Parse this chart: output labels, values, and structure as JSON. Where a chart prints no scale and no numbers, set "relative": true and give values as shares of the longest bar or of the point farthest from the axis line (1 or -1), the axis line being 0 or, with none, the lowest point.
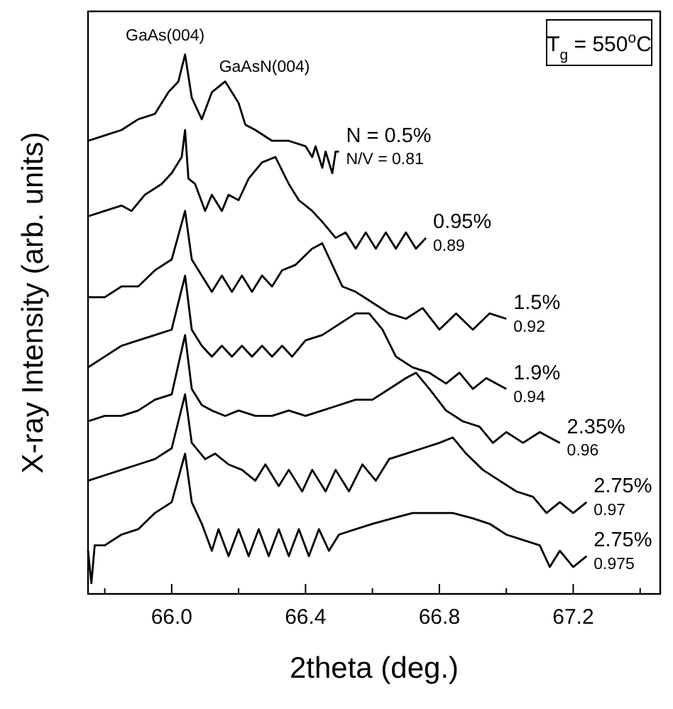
{
  "chart_data": {
    "type": "line",
    "relative": true,
    "xlabel": "2theta (deg.)",
    "ylabel": "X-ray Intensity  (arb. units)",
    "xlim": [
      65.75,
      67.46
    ],
    "xticks": [
      {
        "value": 65.8,
        "label": null
      },
      {
        "value": 66.0,
        "label": "66.0"
      },
      {
        "value": 66.2,
        "label": null
      },
      {
        "value": 66.4,
        "label": "66.4"
      },
      {
        "value": 66.6,
        "label": null
      },
      {
        "value": 66.8,
        "label": "66.8"
      },
      {
        "value": 67.0,
        "label": null
      },
      {
        "value": 67.2,
        "label": "67.2"
      },
      {
        "value": 67.4,
        "label": null
      }
    ],
    "series": [
      {
        "color": "#000000",
        "x": [
          65.75,
          65.8,
          65.85,
          65.9,
          65.95,
          65.99,
          66.02,
          66.04,
          66.06,
          66.09,
          66.12,
          66.16,
          66.2,
          66.22,
          66.25,
          66.3,
          66.35,
          66.4,
          66.42,
          66.43,
          66.45,
          66.46,
          66.48,
          66.49,
          66.5
        ],
        "values": [
          0.84,
          0.85,
          0.86,
          0.88,
          0.89,
          0.93,
          0.95,
          1,
          0.92,
          0.88,
          0.93,
          0.95,
          0.91,
          0.87,
          0.86,
          0.84,
          0.84,
          0.83,
          0.81,
          0.83,
          0.79,
          0.82,
          0.78,
          0.82,
          0.82
        ]
      },
      {
        "color": "#000000",
        "x": [
          65.75,
          65.8,
          65.85,
          65.88,
          65.92,
          65.97,
          66.0,
          66.03,
          66.04,
          66.05,
          66.07,
          66.1,
          66.12,
          66.15,
          66.17,
          66.2,
          66.23,
          66.27,
          66.31,
          66.35,
          66.38,
          66.42,
          66.45,
          66.49,
          66.52,
          66.55,
          66.58,
          66.61,
          66.64,
          66.67,
          66.7,
          66.73,
          66.76
        ],
        "values": [
          0.7,
          0.71,
          0.72,
          0.71,
          0.74,
          0.76,
          0.78,
          0.81,
          0.86,
          0.77,
          0.76,
          0.71,
          0.74,
          0.71,
          0.74,
          0.73,
          0.77,
          0.8,
          0.81,
          0.76,
          0.73,
          0.71,
          0.69,
          0.66,
          0.67,
          0.64,
          0.67,
          0.64,
          0.67,
          0.64,
          0.67,
          0.64,
          0.66
        ]
      },
      {
        "color": "#000000",
        "x": [
          65.75,
          65.8,
          65.85,
          65.9,
          65.95,
          66.0,
          66.04,
          66.06,
          66.09,
          66.12,
          66.15,
          66.18,
          66.21,
          66.24,
          66.27,
          66.3,
          66.33,
          66.37,
          66.42,
          66.45,
          66.48,
          66.51,
          66.55,
          66.6,
          66.65,
          66.7,
          66.75,
          66.8,
          66.85,
          66.9,
          66.95,
          67.0
        ],
        "values": [
          0.55,
          0.55,
          0.57,
          0.57,
          0.6,
          0.62,
          0.71,
          0.62,
          0.59,
          0.56,
          0.59,
          0.56,
          0.59,
          0.56,
          0.59,
          0.57,
          0.6,
          0.61,
          0.64,
          0.65,
          0.61,
          0.57,
          0.56,
          0.54,
          0.52,
          0.51,
          0.53,
          0.49,
          0.52,
          0.49,
          0.52,
          0.51
        ]
      },
      {
        "color": "#000000",
        "x": [
          65.75,
          65.8,
          65.85,
          65.9,
          65.95,
          66.0,
          66.04,
          66.06,
          66.09,
          66.12,
          66.15,
          66.18,
          66.21,
          66.24,
          66.27,
          66.3,
          66.33,
          66.36,
          66.4,
          66.45,
          66.5,
          66.55,
          66.59,
          66.63,
          66.67,
          66.72,
          66.77,
          66.82,
          66.86,
          66.9,
          66.94,
          67.0
        ],
        "values": [
          0.42,
          0.44,
          0.46,
          0.47,
          0.48,
          0.49,
          0.59,
          0.49,
          0.46,
          0.44,
          0.46,
          0.44,
          0.46,
          0.44,
          0.46,
          0.44,
          0.46,
          0.44,
          0.47,
          0.48,
          0.5,
          0.52,
          0.52,
          0.49,
          0.44,
          0.42,
          0.41,
          0.39,
          0.41,
          0.38,
          0.4,
          0.38
        ]
      },
      {
        "color": "#000000",
        "x": [
          65.75,
          65.8,
          65.85,
          65.9,
          65.95,
          66.0,
          66.04,
          66.06,
          66.09,
          66.12,
          66.16,
          66.2,
          66.25,
          66.3,
          66.35,
          66.4,
          66.45,
          66.5,
          66.55,
          66.6,
          66.65,
          66.7,
          66.73,
          66.77,
          66.82,
          66.87,
          66.92,
          66.96,
          67.0,
          67.05,
          67.1,
          67.16
        ],
        "values": [
          0.32,
          0.33,
          0.33,
          0.34,
          0.36,
          0.37,
          0.48,
          0.38,
          0.35,
          0.34,
          0.33,
          0.34,
          0.33,
          0.33,
          0.34,
          0.33,
          0.34,
          0.35,
          0.36,
          0.36,
          0.38,
          0.4,
          0.41,
          0.38,
          0.34,
          0.32,
          0.31,
          0.28,
          0.3,
          0.28,
          0.3,
          0.28
        ]
      },
      {
        "color": "#000000",
        "x": [
          65.75,
          65.8,
          65.85,
          65.9,
          65.95,
          66.0,
          66.04,
          66.06,
          66.1,
          66.13,
          66.17,
          66.21,
          66.25,
          66.28,
          66.32,
          66.35,
          66.39,
          66.42,
          66.46,
          66.49,
          66.53,
          66.57,
          66.61,
          66.65,
          66.7,
          66.75,
          66.8,
          66.84,
          66.88,
          66.93,
          66.98,
          67.03,
          67.08,
          67.12,
          67.16,
          67.2,
          67.24
        ],
        "values": [
          0.21,
          0.22,
          0.23,
          0.24,
          0.25,
          0.27,
          0.37,
          0.28,
          0.25,
          0.26,
          0.24,
          0.23,
          0.21,
          0.24,
          0.2,
          0.23,
          0.19,
          0.23,
          0.19,
          0.23,
          0.19,
          0.24,
          0.21,
          0.25,
          0.26,
          0.27,
          0.28,
          0.29,
          0.26,
          0.23,
          0.21,
          0.19,
          0.18,
          0.15,
          0.17,
          0.15,
          0.17
        ]
      },
      {
        "color": "#000000",
        "x": [
          65.75,
          65.76,
          65.77,
          65.8,
          65.85,
          65.9,
          65.95,
          66.0,
          66.04,
          66.06,
          66.09,
          66.12,
          66.14,
          66.17,
          66.2,
          66.23,
          66.26,
          66.29,
          66.32,
          66.35,
          66.38,
          66.41,
          66.44,
          66.47,
          66.5,
          66.55,
          66.6,
          66.66,
          66.72,
          66.78,
          66.84,
          66.9,
          66.95,
          67.0,
          67.05,
          67.1,
          67.13,
          67.16,
          67.2,
          67.24
        ],
        "values": [
          0.08,
          0.02,
          0.09,
          0.09,
          0.11,
          0.12,
          0.15,
          0.17,
          0.26,
          0.17,
          0.13,
          0.08,
          0.12,
          0.07,
          0.12,
          0.07,
          0.12,
          0.07,
          0.12,
          0.07,
          0.12,
          0.07,
          0.12,
          0.08,
          0.11,
          0.12,
          0.13,
          0.14,
          0.15,
          0.15,
          0.15,
          0.14,
          0.13,
          0.11,
          0.1,
          0.09,
          0.05,
          0.08,
          0.05,
          0.07
        ]
      }
    ],
    "annotations": [
      "GaAs(004)",
      "GaAsN(004)",
      "N = 0.5%",
      "N/V = 0.81",
      "0.95%",
      "0.89",
      "1.5%",
      "0.92",
      "1.9%",
      "0.94",
      "2.35%",
      "0.96",
      "2.75%",
      "0.97",
      "2.75%",
      "0.975",
      "T$_{g}$ = 550$^{o}$C"
    ]
  }
}
